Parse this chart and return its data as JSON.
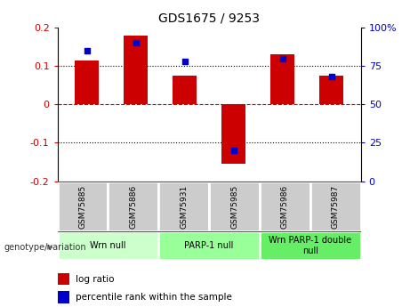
{
  "title": "GDS1675 / 9253",
  "samples": [
    "GSM75885",
    "GSM75886",
    "GSM75931",
    "GSM75985",
    "GSM75986",
    "GSM75987"
  ],
  "log_ratios": [
    0.115,
    0.18,
    0.075,
    -0.155,
    0.13,
    0.075
  ],
  "percentile_ranks_pct": [
    85,
    90,
    78,
    20,
    80,
    68
  ],
  "percentile_scale": [
    0,
    25,
    50,
    75,
    100
  ],
  "ylim": [
    -0.2,
    0.2
  ],
  "yticks": [
    -0.2,
    -0.1,
    0.0,
    0.1,
    0.2
  ],
  "bar_color": "#cc0000",
  "dot_color": "#0000cc",
  "zero_line_color": "#cc0000",
  "grid_color": "#000000",
  "groups": [
    {
      "label": "Wrn null",
      "samples": [
        0,
        1
      ],
      "color": "#ccffcc"
    },
    {
      "label": "PARP-1 null",
      "samples": [
        2,
        3
      ],
      "color": "#99ff99"
    },
    {
      "label": "Wrn PARP-1 double\nnull",
      "samples": [
        4,
        5
      ],
      "color": "#66ee66"
    }
  ],
  "sample_cell_color": "#cccccc",
  "legend_label_log": "log ratio",
  "legend_label_pct": "percentile rank within the sample",
  "genotype_label": "genotype/variation",
  "bar_width": 0.5
}
